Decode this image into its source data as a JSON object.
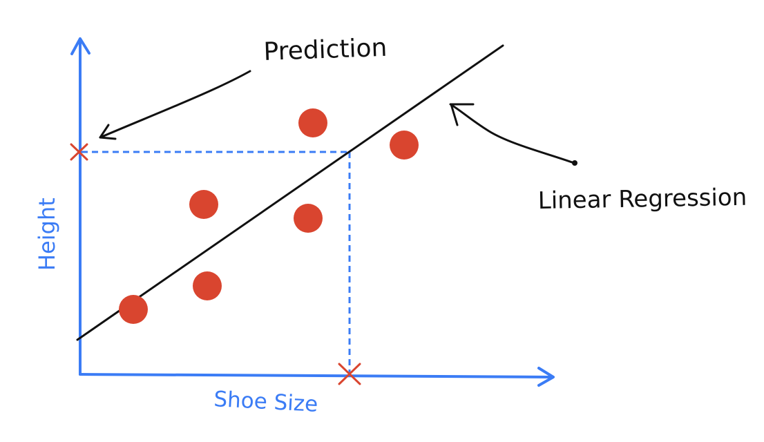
{
  "labels": {
    "x_axis": "Shoe Size",
    "y_axis": "Height",
    "prediction": "Prediction",
    "regression": "Linear Regression"
  },
  "colors": {
    "axis": "#3b7cf5",
    "point": "#d9452f",
    "line": "#111111",
    "guide": "#3b7cf5",
    "marker": "#d9452f"
  },
  "icons": {
    "prediction_arrow": "arrow-icon",
    "regression_arrow": "arrow-icon",
    "marker": "cross-icon"
  }
}
